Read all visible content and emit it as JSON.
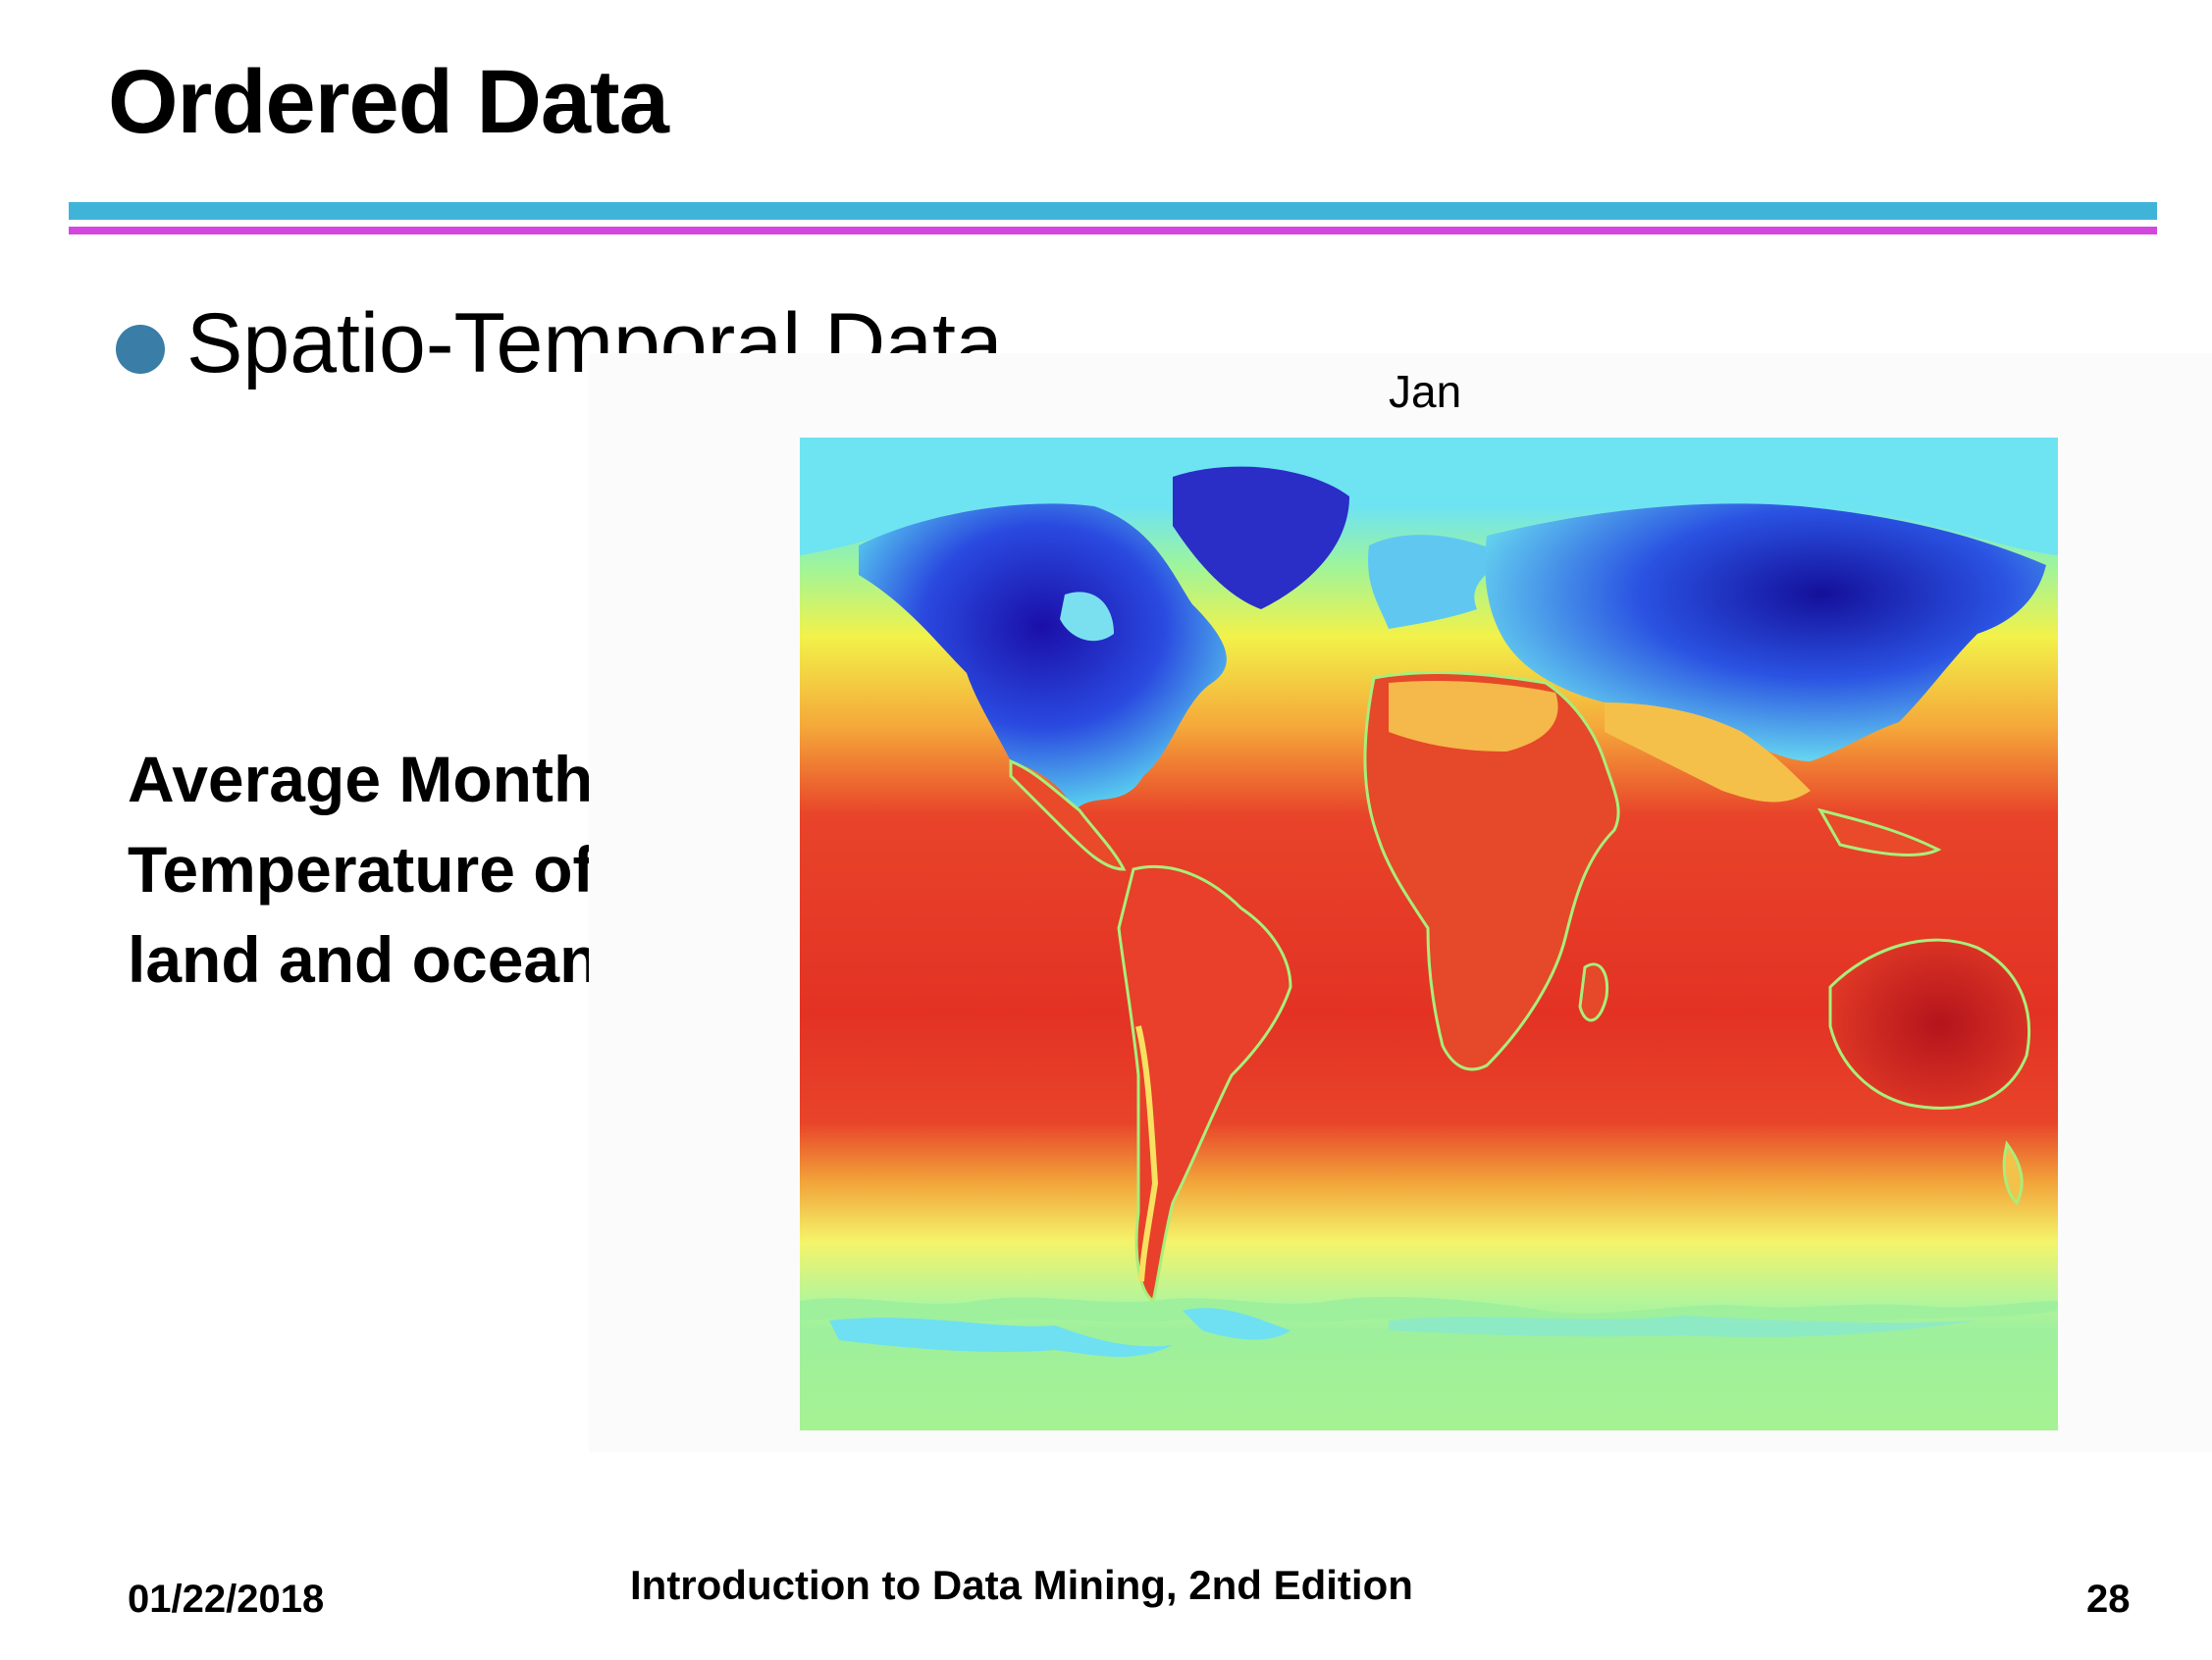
{
  "slide": {
    "title": "Ordered Data",
    "bullet": "Spatio-Temporal Data",
    "side_label_lines": [
      "Average Monthly",
      "Temperature of",
      "land and ocean"
    ]
  },
  "figure": {
    "caption": "Jan",
    "description": "world map of temperature (jet colormap)"
  },
  "footer": {
    "date": "01/22/2018",
    "book": "Introduction to Data Mining, 2nd Edition",
    "page": "28"
  },
  "colors": {
    "accent_cyan": "#40b4d8",
    "accent_magenta": "#d447de",
    "bullet": "#3a7da6"
  }
}
